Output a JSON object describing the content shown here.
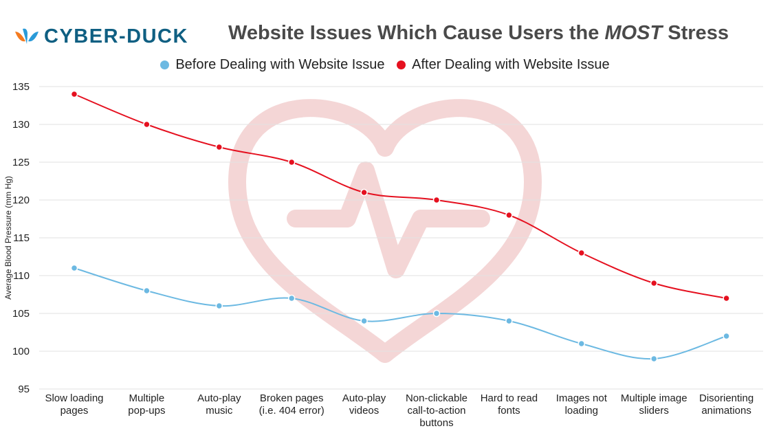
{
  "brand": {
    "name": "CYBER-DUCK",
    "colors": {
      "logo_text": "#0f5f82",
      "logo_orange": "#f47b20",
      "logo_blue": "#2a9ad8"
    },
    "icon": "duck-logo-icon"
  },
  "title": {
    "pre": "Website Issues Which Cause Users the ",
    "emph": "MOST",
    "post": " Stress"
  },
  "legend": {
    "before": "Before Dealing with Website Issue",
    "after": "After Dealing with Website Issue"
  },
  "watermark": {
    "icon": "heart-heartbeat-icon",
    "color": "#f4d6d6"
  },
  "chart_data": {
    "type": "line",
    "ylabel": "Average Blood Pressure (mm Hg)",
    "xlabel": "",
    "ylim": [
      95,
      135
    ],
    "yticks": [
      95,
      100,
      105,
      110,
      115,
      120,
      125,
      130,
      135
    ],
    "grid": true,
    "legend_position": "top-center",
    "categories": [
      [
        "Slow loading",
        "pages"
      ],
      [
        "Multiple",
        "pop-ups"
      ],
      [
        "Auto-play",
        "music"
      ],
      [
        "Broken pages",
        "(i.e. 404 error)"
      ],
      [
        "Auto-play",
        "videos"
      ],
      [
        "Non-clickable",
        "call-to-action",
        "buttons"
      ],
      [
        "Hard to read",
        "fonts"
      ],
      [
        "Images not",
        "loading"
      ],
      [
        "Multiple image",
        "sliders"
      ],
      [
        "Disorienting",
        "animations"
      ]
    ],
    "series": [
      {
        "name": "Before Dealing with Website Issue",
        "color": "#6cb9e2",
        "values": [
          111,
          108,
          106,
          107,
          104,
          105,
          104,
          101,
          99,
          102
        ]
      },
      {
        "name": "After Dealing with Website Issue",
        "color": "#e5101f",
        "values": [
          134,
          130,
          127,
          125,
          121,
          120,
          118,
          113,
          109,
          107
        ]
      }
    ]
  }
}
